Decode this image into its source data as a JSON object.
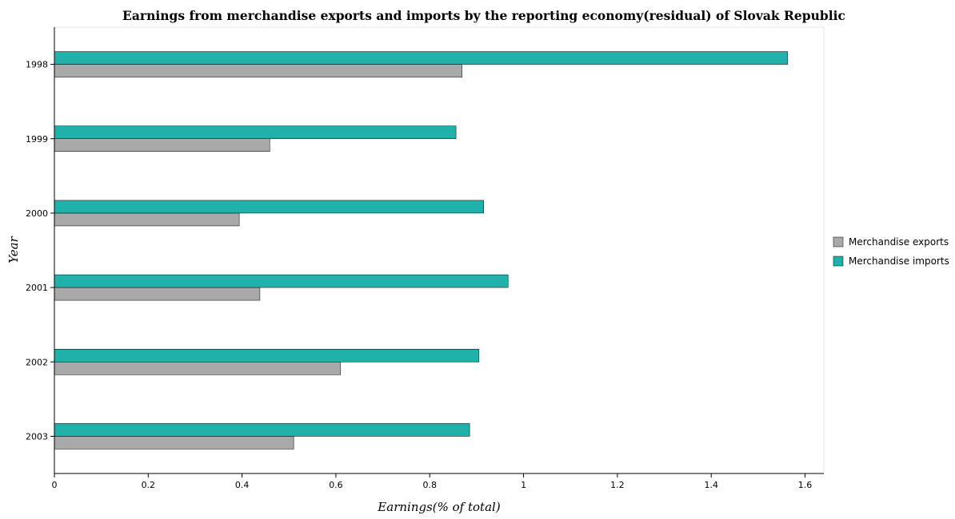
{
  "chart_data": {
    "type": "bar",
    "orientation": "horizontal",
    "title": "Earnings from merchandise exports and imports by the reporting economy(residual) of Slovak Republic",
    "xlabel": "Earnings(% of total)",
    "ylabel": "Year",
    "xlim": [
      0,
      1.64
    ],
    "xticks": [
      "0",
      "0.2",
      "0.4",
      "0.6",
      "0.8",
      "1",
      "1.2",
      "1.4",
      "1.6"
    ],
    "categories": [
      "1998",
      "1999",
      "2000",
      "2001",
      "2002",
      "2003"
    ],
    "series": [
      {
        "name": "Merchandise exports",
        "color": "#a9a9a9",
        "values": [
          0.869,
          0.459,
          0.394,
          0.438,
          0.61,
          0.51
        ]
      },
      {
        "name": "Merchandise imports",
        "color": "#20b2aa",
        "values": [
          1.563,
          0.856,
          0.915,
          0.967,
          0.905,
          0.885
        ]
      }
    ],
    "grid": false,
    "legend_position": "right"
  }
}
